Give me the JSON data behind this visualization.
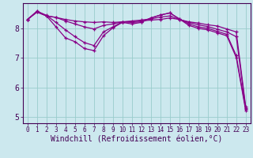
{
  "title": "",
  "xlabel": "Windchill (Refroidissement éolien,°C)",
  "ylabel": "",
  "bg_color": "#cce8ee",
  "line_color": "#880088",
  "grid_color": "#99cccc",
  "spine_color": "#440055",
  "tick_color": "#440055",
  "label_color": "#440055",
  "xlim": [
    -0.5,
    23.5
  ],
  "ylim": [
    4.8,
    8.85
  ],
  "yticks": [
    5,
    6,
    7,
    8
  ],
  "xticks": [
    0,
    1,
    2,
    3,
    4,
    5,
    6,
    7,
    8,
    9,
    10,
    11,
    12,
    13,
    14,
    15,
    16,
    17,
    18,
    19,
    20,
    21,
    22,
    23
  ],
  "series": [
    [
      8.3,
      8.55,
      8.42,
      8.37,
      8.3,
      8.25,
      8.22,
      8.2,
      8.22,
      8.2,
      8.22,
      8.22,
      8.25,
      8.28,
      8.3,
      8.35,
      8.3,
      8.22,
      8.18,
      8.12,
      8.08,
      7.98,
      7.88,
      5.35
    ],
    [
      8.3,
      8.55,
      8.42,
      8.37,
      8.25,
      8.15,
      8.05,
      7.98,
      8.1,
      8.15,
      8.22,
      8.25,
      8.28,
      8.32,
      8.38,
      8.42,
      8.3,
      8.2,
      8.12,
      8.06,
      7.97,
      7.88,
      7.72,
      5.3
    ],
    [
      8.3,
      8.58,
      8.44,
      8.2,
      7.95,
      7.72,
      7.52,
      7.42,
      7.88,
      8.05,
      8.22,
      8.2,
      8.22,
      8.35,
      8.45,
      8.52,
      8.32,
      8.15,
      8.05,
      8.0,
      7.9,
      7.8,
      7.08,
      5.28
    ],
    [
      8.3,
      8.58,
      8.42,
      8.05,
      7.68,
      7.55,
      7.32,
      7.25,
      7.75,
      8.02,
      8.2,
      8.15,
      8.2,
      8.35,
      8.45,
      8.52,
      8.32,
      8.1,
      8.0,
      7.95,
      7.85,
      7.75,
      7.02,
      5.22
    ]
  ],
  "xlabel_fontsize": 7,
  "ytick_fontsize": 7,
  "xtick_fontsize": 5.5,
  "linewidth": 0.9,
  "markersize": 2.5
}
